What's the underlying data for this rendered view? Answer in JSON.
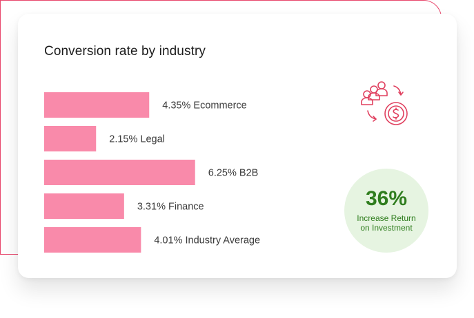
{
  "chart_data": {
    "type": "bar",
    "orientation": "horizontal",
    "title": "Conversion rate by industry",
    "categories": [
      "Ecommerce",
      "Legal",
      "B2B",
      "Finance",
      "Industry Average"
    ],
    "values": [
      4.35,
      2.15,
      6.25,
      3.31,
      4.01
    ],
    "labels": [
      "4.35% Ecommerce",
      "2.15% Legal",
      "6.25% B2B",
      "3.31% Finance",
      "4.01% Industry Average"
    ],
    "unit": "%",
    "xlim": [
      0,
      7.5
    ],
    "grid": false,
    "bar_color": "#f98aaa"
  },
  "roi": {
    "value": "36%",
    "label": "Increase Return on Investment",
    "color": "#2f7d1e",
    "background": "#e6f4e1"
  },
  "icons": {
    "people_money": "people-money-cycle-icon",
    "accent": "#e0405f"
  }
}
